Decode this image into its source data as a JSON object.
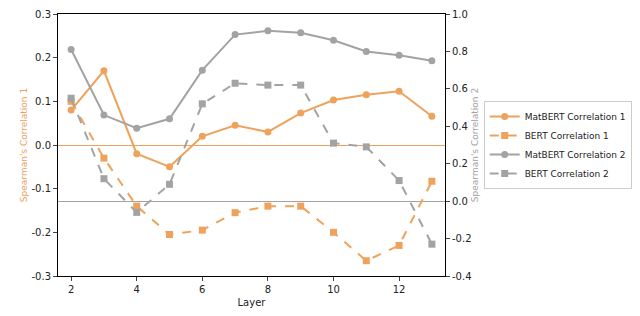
{
  "chart_data": {
    "type": "line",
    "x_label": "Layer",
    "y_label": "Spearman's Correlation 1",
    "y2_label": "Spearman's Correlation 2",
    "x": [
      2,
      3,
      4,
      5,
      6,
      7,
      8,
      9,
      10,
      11,
      12,
      13
    ],
    "xlim": [
      1.6,
      13.4
    ],
    "xticks": [
      2,
      4,
      6,
      8,
      10,
      12
    ],
    "ylim": [
      -0.3,
      0.3
    ],
    "yticks": [
      -0.3,
      -0.2,
      -0.1,
      {
        "value": 0,
        "label": "0.0"
      },
      0.1,
      0.2,
      0.3
    ],
    "y2lim": [
      -0.4,
      1.0
    ],
    "y2ticks": [
      -0.4,
      -0.2,
      {
        "value": 0,
        "label": "0.0"
      },
      0.2,
      0.4,
      0.6,
      0.8,
      {
        "value": 1,
        "label": "1.0"
      }
    ],
    "grid": false,
    "legend": "right",
    "series": [
      {
        "name": "MatBERT Correlation 1",
        "color": "#eea25b",
        "marker": "circle",
        "line_style": "solid",
        "values": [
          0.08,
          0.17,
          -0.02,
          -0.05,
          0.02,
          0.045,
          0.03,
          0.073,
          0.103,
          0.115,
          0.123,
          0.066
        ]
      },
      {
        "name": "BERT Correlation 1",
        "color": "#eea25b",
        "marker": "square",
        "line_style": "dash",
        "values": [
          0.1,
          -0.03,
          -0.14,
          -0.205,
          -0.195,
          -0.155,
          -0.14,
          -0.14,
          -0.2,
          -0.265,
          -0.23,
          -0.083
        ]
      },
      {
        "name": "MatBERT Correlation 2",
        "color": "#a3a3a3",
        "marker": "circle",
        "line_style": "solid",
        "axis": "y2",
        "values": [
          0.81,
          0.46,
          0.39,
          0.44,
          0.7,
          0.89,
          0.91,
          0.9,
          0.86,
          0.8,
          0.78,
          0.75
        ]
      },
      {
        "name": "BERT Correlation 2",
        "color": "#a3a3a3",
        "marker": "square",
        "line_style": "dash",
        "axis": "y2",
        "values": [
          0.55,
          0.12,
          -0.06,
          0.09,
          0.52,
          0.63,
          0.62,
          0.62,
          0.31,
          0.29,
          0.11,
          -0.23
        ]
      }
    ]
  }
}
